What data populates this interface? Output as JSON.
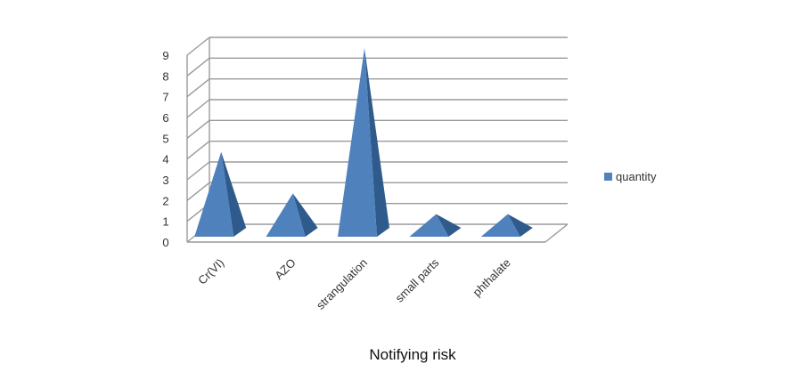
{
  "chart_data": {
    "type": "bar",
    "bar_shape": "pyramid-3d",
    "categories": [
      "Cr(VI)",
      "AZO",
      "strangulation",
      "small parts",
      "phthalate"
    ],
    "series": [
      {
        "name": "quantity",
        "values": [
          4,
          2,
          9,
          1,
          1
        ]
      }
    ],
    "title": "",
    "xlabel": "Notifying risk",
    "ylabel": "",
    "ylim": [
      0,
      9
    ],
    "yticks": [
      "0",
      "1",
      "2",
      "3",
      "4",
      "5",
      "6",
      "7",
      "8",
      "9"
    ],
    "grid": true,
    "legend": "right",
    "colors": {
      "bar_front": "#4f81bd",
      "bar_side": "#2f5a8c",
      "grid": "#9a9a9a"
    }
  }
}
